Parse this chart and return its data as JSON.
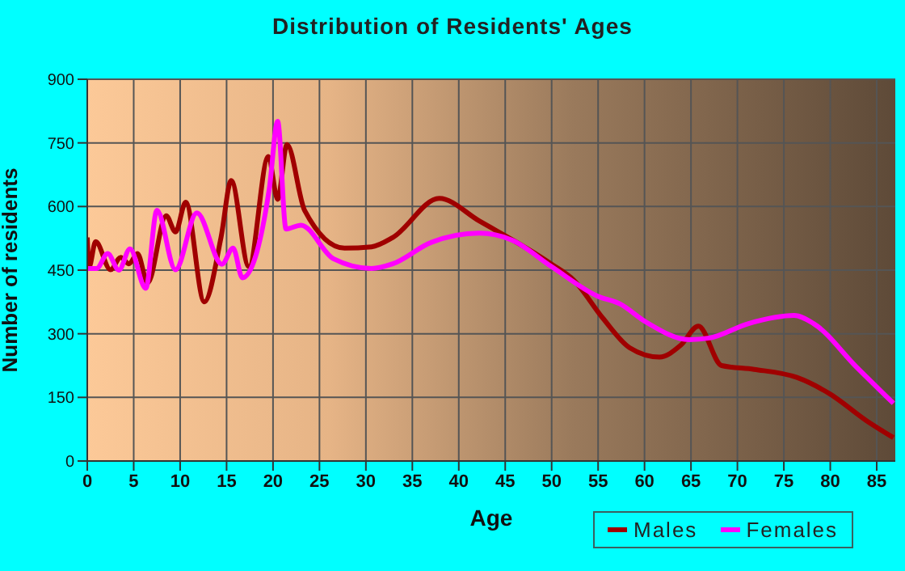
{
  "chart_data": {
    "type": "line",
    "title": "Distribution of Residents' Ages",
    "xlabel": "Age",
    "ylabel": "Number of residents",
    "xlim": [
      0,
      87
    ],
    "xticks": [
      0,
      5,
      10,
      15,
      20,
      25,
      30,
      35,
      40,
      45,
      50,
      55,
      60,
      65,
      70,
      75,
      80,
      85
    ],
    "ylim": [
      0,
      900
    ],
    "yticks": [
      0,
      150,
      300,
      450,
      600,
      750,
      900
    ],
    "grid": true,
    "legend": "bottom right",
    "marker": "none",
    "line_style": "solid",
    "series": [
      {
        "name": "Males",
        "color": "#a00000",
        "x": [
          0,
          0.2,
          0.9,
          2.5,
          3.6,
          4.5,
          5.4,
          6.5,
          8.5,
          9.5,
          10.6,
          12.6,
          14.4,
          15.5,
          17.4,
          19.5,
          20.5,
          21.5,
          23.4,
          27.7,
          30.6,
          32.9,
          37.9,
          42.2,
          50,
          52.4,
          55.5,
          58.4,
          61.6,
          63.9,
          65.8,
          68.3,
          71.8,
          76.4,
          79.9,
          83.9,
          86.8
        ],
        "values": [
          527,
          458,
          517,
          451,
          480,
          465,
          489,
          420,
          578,
          540,
          610,
          375,
          527,
          661,
          458,
          718,
          617,
          746,
          591,
          502,
          505,
          527,
          619,
          566,
          464,
          426,
          337,
          267,
          245,
          273,
          318,
          225,
          216,
          197,
          159,
          95,
          55
        ]
      },
      {
        "name": "Females",
        "color": "#ff00ff",
        "x": [
          0,
          1,
          2.2,
          3.4,
          4.6,
          6.3,
          7.5,
          9.5,
          11.8,
          14.5,
          15.7,
          16.7,
          19.6,
          20.5,
          21.4,
          23,
          26.5,
          30.6,
          32.9,
          37,
          42.2,
          45.7,
          50,
          55,
          57.3,
          60.2,
          64.8,
          67,
          71.2,
          76.1,
          78.2,
          82.8,
          86.8
        ],
        "values": [
          454,
          454,
          489,
          450,
          500,
          407,
          591,
          451,
          585,
          464,
          502,
          432,
          642,
          801,
          547,
          556,
          477,
          454,
          465,
          515,
          537,
          521,
          458,
          388,
          371,
          327,
          286,
          290,
          324,
          343,
          324,
          222,
          136
        ]
      }
    ]
  }
}
